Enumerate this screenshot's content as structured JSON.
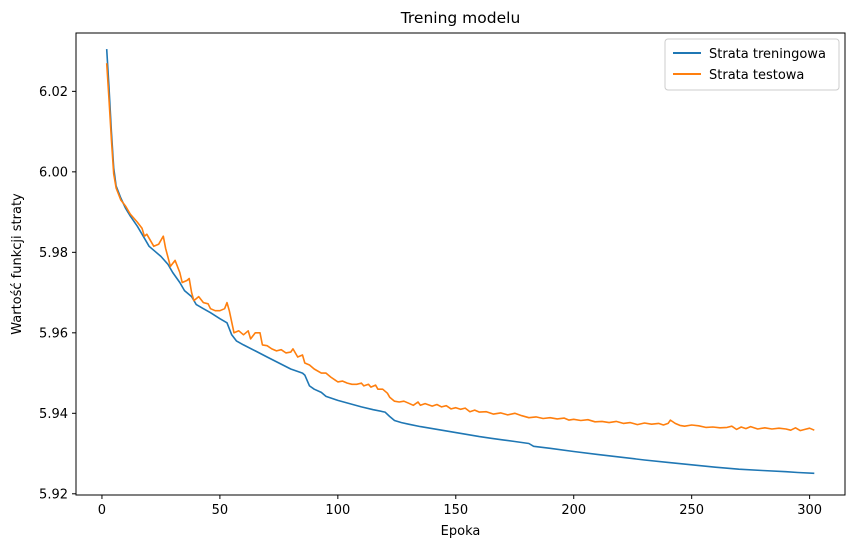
{
  "chart_data": {
    "type": "line",
    "title": "Trening modelu",
    "xlabel": "Epoka",
    "ylabel": "Wartość funkcji straty",
    "xlim": [
      -11,
      315
    ],
    "ylim": [
      5.9197,
      6.0345
    ],
    "xticks": [
      0,
      50,
      100,
      150,
      200,
      250,
      300
    ],
    "yticks": [
      5.92,
      5.94,
      5.96,
      5.98,
      6.0,
      6.02
    ],
    "ytick_labels": [
      "5.92",
      "5.94",
      "5.96",
      "5.98",
      "6.00",
      "6.02"
    ],
    "grid": false,
    "legend_position": "top-right",
    "series": [
      {
        "name": "Strata treningowa",
        "color": "#1f77b4",
        "points": [
          [
            2,
            6.0305
          ],
          [
            3,
            6.021
          ],
          [
            4,
            6.01
          ],
          [
            5,
            6.001
          ],
          [
            6,
            5.9965
          ],
          [
            8,
            5.9935
          ],
          [
            10,
            5.991
          ],
          [
            12,
            5.989
          ],
          [
            15,
            5.9865
          ],
          [
            18,
            5.9835
          ],
          [
            20,
            5.9815
          ],
          [
            22,
            5.9805
          ],
          [
            25,
            5.979
          ],
          [
            28,
            5.977
          ],
          [
            30,
            5.975
          ],
          [
            33,
            5.9725
          ],
          [
            35,
            5.9705
          ],
          [
            38,
            5.969
          ],
          [
            40,
            5.967
          ],
          [
            43,
            5.966
          ],
          [
            46,
            5.965
          ],
          [
            50,
            5.9635
          ],
          [
            53,
            5.9625
          ],
          [
            55,
            5.9595
          ],
          [
            57,
            5.958
          ],
          [
            60,
            5.957
          ],
          [
            65,
            5.9555
          ],
          [
            70,
            5.954
          ],
          [
            75,
            5.9525
          ],
          [
            80,
            5.951
          ],
          [
            85,
            5.95
          ],
          [
            86,
            5.9495
          ],
          [
            88,
            5.9468
          ],
          [
            90,
            5.946
          ],
          [
            93,
            5.9452
          ],
          [
            95,
            5.9442
          ],
          [
            100,
            5.9432
          ],
          [
            105,
            5.9424
          ],
          [
            110,
            5.9416
          ],
          [
            115,
            5.9409
          ],
          [
            120,
            5.9403
          ],
          [
            122,
            5.9392
          ],
          [
            124,
            5.9382
          ],
          [
            127,
            5.9377
          ],
          [
            130,
            5.9373
          ],
          [
            135,
            5.9367
          ],
          [
            140,
            5.9362
          ],
          [
            145,
            5.9357
          ],
          [
            150,
            5.9352
          ],
          [
            155,
            5.9347
          ],
          [
            160,
            5.9342
          ],
          [
            165,
            5.9338
          ],
          [
            170,
            5.9334
          ],
          [
            175,
            5.933
          ],
          [
            181,
            5.9325
          ],
          [
            183,
            5.9318
          ],
          [
            190,
            5.9313
          ],
          [
            200,
            5.9305
          ],
          [
            210,
            5.9298
          ],
          [
            220,
            5.9291
          ],
          [
            230,
            5.9284
          ],
          [
            240,
            5.9278
          ],
          [
            250,
            5.9272
          ],
          [
            260,
            5.9266
          ],
          [
            270,
            5.9261
          ],
          [
            280,
            5.9258
          ],
          [
            290,
            5.9255
          ],
          [
            295,
            5.9253
          ],
          [
            302,
            5.9251
          ]
        ]
      },
      {
        "name": "Strata testowa",
        "color": "#ff7f0e",
        "points": [
          [
            2,
            6.027
          ],
          [
            3,
            6.018
          ],
          [
            4,
            6.008
          ],
          [
            5,
            5.9995
          ],
          [
            6,
            5.996
          ],
          [
            8,
            5.993
          ],
          [
            10,
            5.9915
          ],
          [
            12,
            5.9895
          ],
          [
            15,
            5.9875
          ],
          [
            17,
            5.986
          ],
          [
            18,
            5.984
          ],
          [
            19,
            5.9845
          ],
          [
            20,
            5.9835
          ],
          [
            22,
            5.9815
          ],
          [
            24,
            5.982
          ],
          [
            26,
            5.984
          ],
          [
            27,
            5.981
          ],
          [
            29,
            5.9765
          ],
          [
            31,
            5.978
          ],
          [
            33,
            5.975
          ],
          [
            34,
            5.9725
          ],
          [
            36,
            5.973
          ],
          [
            37,
            5.9735
          ],
          [
            38,
            5.97
          ],
          [
            39,
            5.968
          ],
          [
            41,
            5.969
          ],
          [
            43,
            5.9675
          ],
          [
            45,
            5.9672
          ],
          [
            46,
            5.966
          ],
          [
            48,
            5.9655
          ],
          [
            50,
            5.9655
          ],
          [
            52,
            5.966
          ],
          [
            53,
            5.9675
          ],
          [
            54,
            5.9655
          ],
          [
            56,
            5.96
          ],
          [
            58,
            5.9605
          ],
          [
            60,
            5.9595
          ],
          [
            62,
            5.9605
          ],
          [
            63,
            5.9585
          ],
          [
            65,
            5.96
          ],
          [
            67,
            5.96
          ],
          [
            68,
            5.957
          ],
          [
            70,
            5.9568
          ],
          [
            72,
            5.956
          ],
          [
            74,
            5.9555
          ],
          [
            76,
            5.9558
          ],
          [
            78,
            5.955
          ],
          [
            80,
            5.9552
          ],
          [
            81,
            5.956
          ],
          [
            83,
            5.954
          ],
          [
            85,
            5.9545
          ],
          [
            86,
            5.9525
          ],
          [
            88,
            5.952
          ],
          [
            90,
            5.951
          ],
          [
            93,
            5.95
          ],
          [
            95,
            5.95
          ],
          [
            97,
            5.949
          ],
          [
            99,
            5.9482
          ],
          [
            100,
            5.9478
          ],
          [
            102,
            5.948
          ],
          [
            104,
            5.9475
          ],
          [
            106,
            5.9472
          ],
          [
            108,
            5.9472
          ],
          [
            110,
            5.9475
          ],
          [
            111,
            5.9468
          ],
          [
            113,
            5.9472
          ],
          [
            114,
            5.9465
          ],
          [
            116,
            5.947
          ],
          [
            117,
            5.946
          ],
          [
            119,
            5.946
          ],
          [
            121,
            5.945
          ],
          [
            122,
            5.944
          ],
          [
            124,
            5.943
          ],
          [
            126,
            5.9428
          ],
          [
            128,
            5.943
          ],
          [
            130,
            5.9425
          ],
          [
            132,
            5.942
          ],
          [
            134,
            5.9428
          ],
          [
            135,
            5.942
          ],
          [
            137,
            5.9424
          ],
          [
            140,
            5.9418
          ],
          [
            142,
            5.9422
          ],
          [
            144,
            5.9416
          ],
          [
            146,
            5.9419
          ],
          [
            148,
            5.9411
          ],
          [
            150,
            5.9414
          ],
          [
            152,
            5.941
          ],
          [
            154,
            5.9413
          ],
          [
            156,
            5.9404
          ],
          [
            158,
            5.9408
          ],
          [
            160,
            5.9403
          ],
          [
            163,
            5.9404
          ],
          [
            166,
            5.9398
          ],
          [
            169,
            5.9401
          ],
          [
            172,
            5.9396
          ],
          [
            175,
            5.94
          ],
          [
            178,
            5.9394
          ],
          [
            181,
            5.9389
          ],
          [
            184,
            5.9391
          ],
          [
            187,
            5.9387
          ],
          [
            190,
            5.9389
          ],
          [
            193,
            5.9386
          ],
          [
            196,
            5.9388
          ],
          [
            198,
            5.9383
          ],
          [
            200,
            5.9385
          ],
          [
            203,
            5.9382
          ],
          [
            206,
            5.9384
          ],
          [
            209,
            5.9379
          ],
          [
            212,
            5.938
          ],
          [
            215,
            5.9377
          ],
          [
            218,
            5.938
          ],
          [
            221,
            5.9375
          ],
          [
            224,
            5.9377
          ],
          [
            227,
            5.9372
          ],
          [
            230,
            5.9376
          ],
          [
            233,
            5.9373
          ],
          [
            236,
            5.9375
          ],
          [
            238,
            5.9371
          ],
          [
            240,
            5.9375
          ],
          [
            241,
            5.9383
          ],
          [
            243,
            5.9375
          ],
          [
            245,
            5.937
          ],
          [
            247,
            5.9368
          ],
          [
            250,
            5.9371
          ],
          [
            253,
            5.9369
          ],
          [
            256,
            5.9365
          ],
          [
            259,
            5.9366
          ],
          [
            262,
            5.9364
          ],
          [
            265,
            5.9365
          ],
          [
            267,
            5.9368
          ],
          [
            269,
            5.936
          ],
          [
            271,
            5.9366
          ],
          [
            273,
            5.9362
          ],
          [
            275,
            5.9367
          ],
          [
            278,
            5.9361
          ],
          [
            281,
            5.9364
          ],
          [
            284,
            5.9361
          ],
          [
            287,
            5.9363
          ],
          [
            290,
            5.9361
          ],
          [
            292,
            5.9358
          ],
          [
            294,
            5.9364
          ],
          [
            296,
            5.9357
          ],
          [
            298,
            5.936
          ],
          [
            300,
            5.9363
          ],
          [
            302,
            5.9358
          ]
        ]
      }
    ]
  }
}
